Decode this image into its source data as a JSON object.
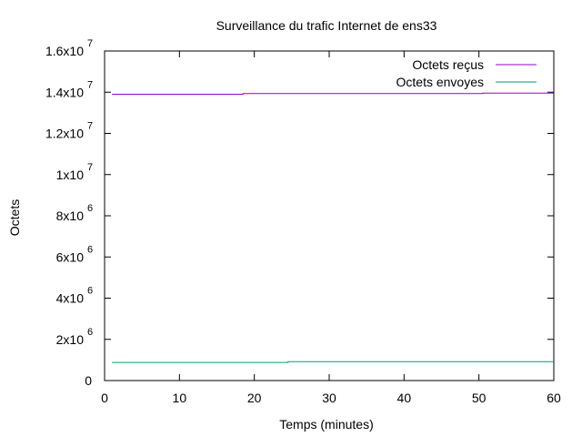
{
  "chart_data": {
    "type": "line",
    "title": "Surveillance du trafic Internet de ens33",
    "xlabel": "Temps (minutes)",
    "ylabel": "Octets",
    "xlim": [
      0,
      60
    ],
    "ylim": [
      0,
      16000000
    ],
    "x_ticks": [
      0,
      10,
      20,
      30,
      40,
      50,
      60
    ],
    "y_ticks": [
      {
        "value": 0,
        "mantissa": "0",
        "exponent": ""
      },
      {
        "value": 2000000,
        "mantissa": "2x10",
        "exponent": "6"
      },
      {
        "value": 4000000,
        "mantissa": "4x10",
        "exponent": "6"
      },
      {
        "value": 6000000,
        "mantissa": "6x10",
        "exponent": "6"
      },
      {
        "value": 8000000,
        "mantissa": "8x10",
        "exponent": "6"
      },
      {
        "value": 10000000,
        "mantissa": "1x10",
        "exponent": "7"
      },
      {
        "value": 12000000,
        "mantissa": "1.2x10",
        "exponent": "7"
      },
      {
        "value": 14000000,
        "mantissa": "1.4x10",
        "exponent": "7"
      },
      {
        "value": 16000000,
        "mantissa": "1.6x10",
        "exponent": "7"
      }
    ],
    "grid": false,
    "legend_position": "top-right",
    "series": [
      {
        "name": "Octets reçus",
        "color": "#9400d3",
        "x": [
          1,
          18.5,
          18.5,
          50.5,
          50.5,
          60
        ],
        "y": [
          13900000,
          13900000,
          13930000,
          13930000,
          13960000,
          13960000
        ]
      },
      {
        "name": "Octets envoyes",
        "color": "#009e73",
        "x": [
          1,
          24.5,
          24.5,
          60
        ],
        "y": [
          880000,
          880000,
          920000,
          920000
        ]
      }
    ]
  }
}
